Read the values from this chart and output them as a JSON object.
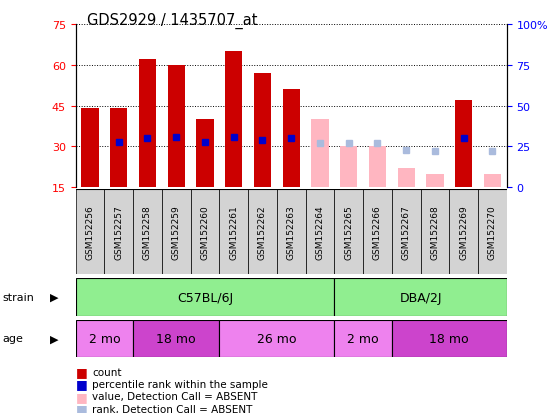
{
  "title": "GDS2929 / 1435707_at",
  "samples": [
    "GSM152256",
    "GSM152257",
    "GSM152258",
    "GSM152259",
    "GSM152260",
    "GSM152261",
    "GSM152262",
    "GSM152263",
    "GSM152264",
    "GSM152265",
    "GSM152266",
    "GSM152267",
    "GSM152268",
    "GSM152269",
    "GSM152270"
  ],
  "count_values": [
    44,
    44,
    62,
    60,
    40,
    65,
    57,
    51,
    null,
    null,
    null,
    null,
    null,
    47,
    null
  ],
  "count_absent": [
    null,
    null,
    null,
    null,
    null,
    null,
    null,
    null,
    40,
    30,
    30,
    22,
    20,
    null,
    20
  ],
  "rank_values": [
    null,
    28,
    30,
    31,
    28,
    31,
    29,
    30,
    null,
    null,
    null,
    null,
    null,
    30,
    null
  ],
  "rank_absent": [
    null,
    null,
    null,
    null,
    null,
    null,
    null,
    null,
    27,
    27,
    27,
    23,
    22,
    null,
    22
  ],
  "ylim_left": [
    15,
    75
  ],
  "ylim_right": [
    0,
    100
  ],
  "yticks_left": [
    15,
    30,
    45,
    60,
    75
  ],
  "yticks_right": [
    0,
    25,
    50,
    75,
    100
  ],
  "strain_groups": [
    [
      0,
      8,
      "C57BL/6J"
    ],
    [
      9,
      14,
      "DBA/2J"
    ]
  ],
  "age_groups": [
    [
      0,
      1,
      "2 mo"
    ],
    [
      2,
      4,
      "18 mo"
    ],
    [
      5,
      8,
      "26 mo"
    ],
    [
      9,
      10,
      "2 mo"
    ],
    [
      11,
      14,
      "18 mo"
    ]
  ],
  "age_colors": [
    "#EE82EE",
    "#CC44CC",
    "#EE82EE",
    "#EE82EE",
    "#CC44CC"
  ],
  "strain_color": "#90EE90",
  "bar_color_present": "#CC0000",
  "bar_color_absent": "#FFB6C1",
  "rank_color_present": "#0000CC",
  "rank_color_absent": "#AABBDD",
  "tick_label_bg": "#D3D3D3",
  "bar_width": 0.6
}
